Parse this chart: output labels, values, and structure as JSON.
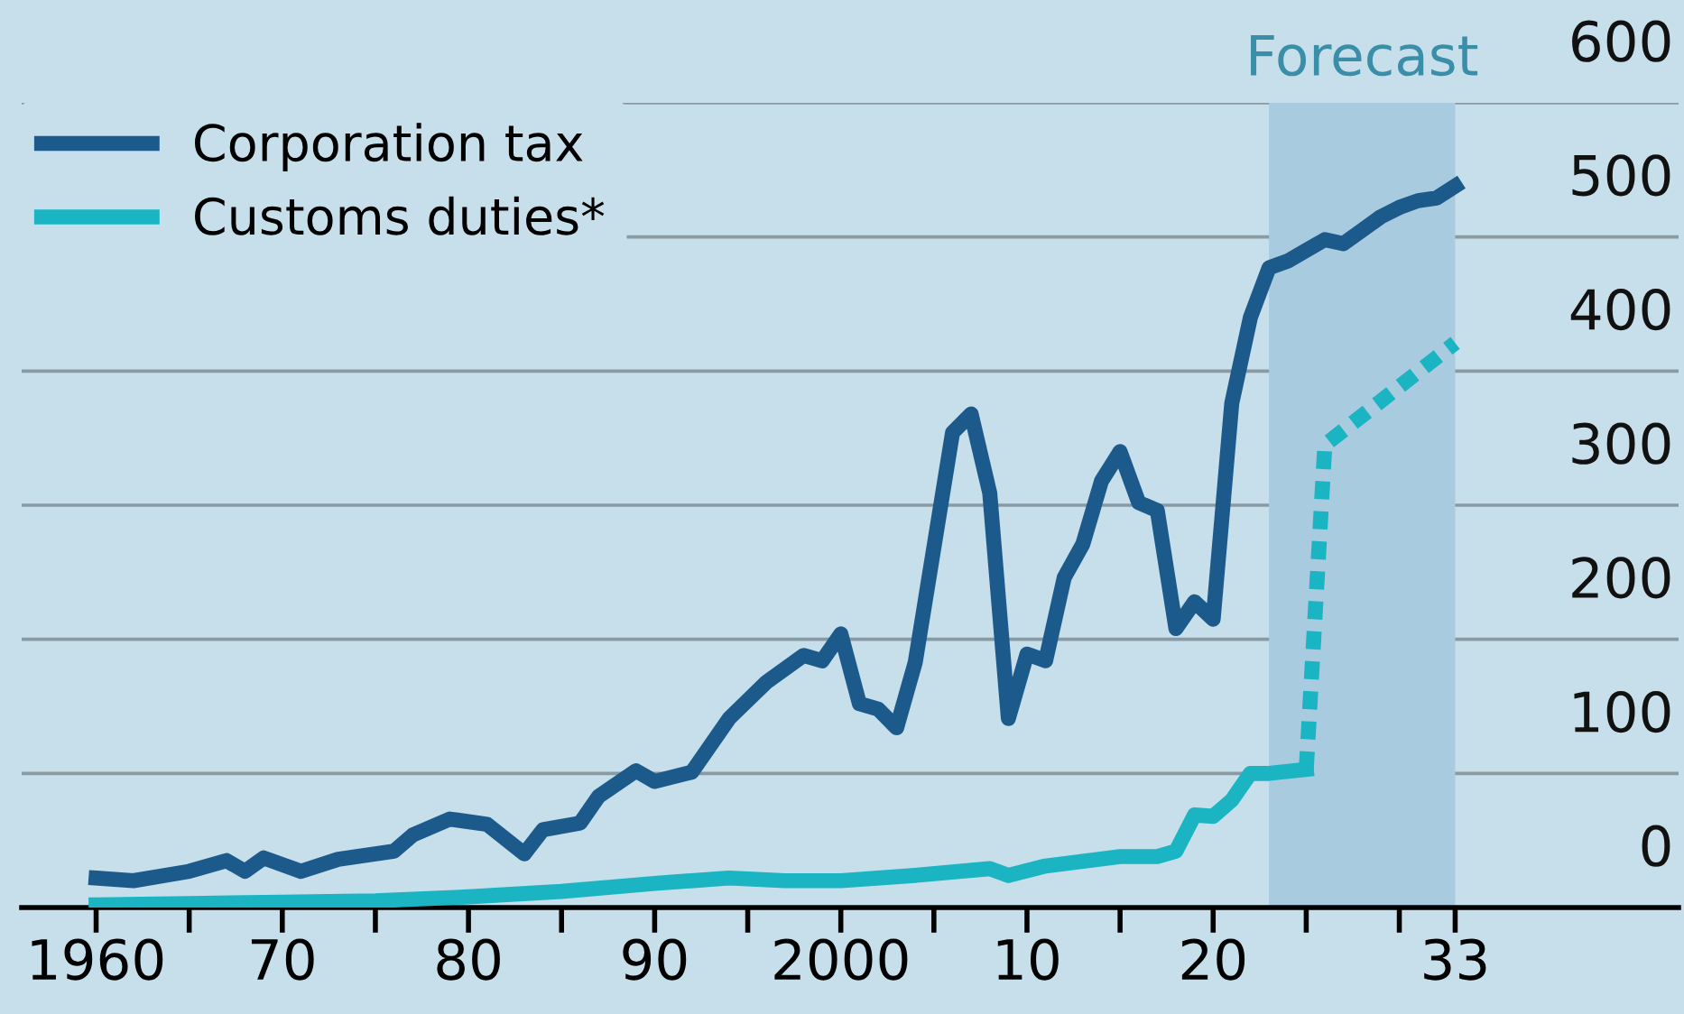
{
  "chart_data": {
    "type": "line",
    "xlim": [
      1956,
      2045
    ],
    "ylim": [
      0,
      600
    ],
    "xticks": [
      1960,
      {
        "value": 1965,
        "label": null
      },
      {
        "value": 1970,
        "label": "70"
      },
      {
        "value": 1975,
        "label": null
      },
      {
        "value": 1980,
        "label": "80"
      },
      {
        "value": 1985,
        "label": null
      },
      {
        "value": 1990,
        "label": "90"
      },
      {
        "value": 1995,
        "label": null
      },
      2000,
      {
        "value": 2005,
        "label": null
      },
      {
        "value": 2010,
        "label": "10"
      },
      {
        "value": 2015,
        "label": null
      },
      {
        "value": 2020,
        "label": "20"
      },
      {
        "value": 2025,
        "label": null
      },
      {
        "value": 2030,
        "label": null
      },
      {
        "value": 2033,
        "label": "33"
      }
    ],
    "yticks": [
      0,
      100,
      200,
      300,
      400,
      500,
      600
    ],
    "grid": "y",
    "legend": "top left",
    "line_style": "solid",
    "bands": [
      {
        "axis": "x",
        "from": 2023,
        "to": 2033,
        "label": "Forecast",
        "color": "#a9cbe0"
      }
    ],
    "series": [
      {
        "name": "Corporation tax",
        "color": "#1d5a8c",
        "x": [
          1960,
          1962,
          1965,
          1967,
          1968,
          1969,
          1971,
          1973,
          1976,
          1977,
          1979,
          1981,
          1983,
          1984,
          1986,
          1987,
          1989,
          1990,
          1992,
          1994,
          1996,
          1998,
          1999,
          2000,
          2001,
          2002,
          2003,
          2004,
          2006,
          2007,
          2008,
          2009,
          2010,
          2011,
          2012,
          2013,
          2014,
          2015,
          2016,
          2017,
          2018,
          2019,
          2020,
          2021,
          2022,
          2023,
          2024,
          2025,
          2026,
          2027,
          2028,
          2029,
          2030,
          2031,
          2032,
          2033
        ],
        "values": [
          22,
          20,
          27,
          35,
          27,
          37,
          27,
          36,
          42,
          54,
          66,
          62,
          40,
          58,
          63,
          83,
          102,
          94,
          101,
          141,
          168,
          188,
          184,
          204,
          152,
          148,
          134,
          183,
          354,
          368,
          309,
          141,
          189,
          184,
          246,
          271,
          318,
          340,
          302,
          296,
          208,
          228,
          215,
          376,
          440,
          477,
          482,
          490,
          498,
          495,
          505,
          515,
          522,
          527,
          529,
          538
        ]
      },
      {
        "name": "Customs duties*",
        "color": "#1ab4c2",
        "x": [
          1960,
          1965,
          1970,
          1975,
          1980,
          1985,
          1990,
          1994,
          1997,
          2000,
          2004,
          2008,
          2009,
          2011,
          2015,
          2017,
          2018,
          2019,
          2020,
          2021,
          2022,
          2023,
          2025
        ],
        "values": [
          2,
          3,
          4,
          5,
          8,
          12,
          18,
          22,
          20,
          20,
          24,
          29,
          24,
          31,
          38,
          38,
          42,
          69,
          68,
          80,
          100,
          100,
          103
        ]
      },
      {
        "color": "#1ab4c2",
        "line_style": "dashed",
        "x": [
          2025,
          2026,
          2033
        ],
        "values": [
          103,
          345,
          421
        ]
      }
    ]
  }
}
